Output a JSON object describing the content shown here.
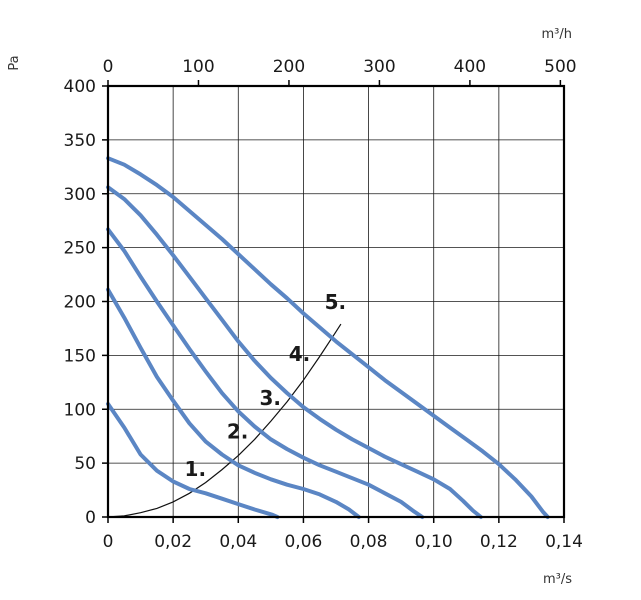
{
  "chart_data": {
    "type": "line",
    "x_unit_bottom": "m³/s",
    "x_unit_top": "m³/h",
    "y_unit": "Pa",
    "xlim": [
      0,
      0.14
    ],
    "ylim": [
      0,
      400
    ],
    "x_ticks": [
      {
        "value": 0,
        "label": "0"
      },
      {
        "value": 0.02,
        "label": "0,02"
      },
      {
        "value": 0.04,
        "label": "0,04"
      },
      {
        "value": 0.06,
        "label": "0,06"
      },
      {
        "value": 0.08,
        "label": "0,08"
      },
      {
        "value": 0.1,
        "label": "0,10"
      },
      {
        "value": 0.12,
        "label": "0,12"
      },
      {
        "value": 0.14,
        "label": "0,14"
      }
    ],
    "x_top_ticks": [
      {
        "value": 0,
        "label": "0"
      },
      {
        "value": 100,
        "label": "100"
      },
      {
        "value": 200,
        "label": "200"
      },
      {
        "value": 300,
        "label": "300"
      },
      {
        "value": 400,
        "label": "400"
      },
      {
        "value": 500,
        "label": "500"
      }
    ],
    "x_top_per_bottom_unit": 3600,
    "y_ticks": [
      {
        "value": 0,
        "label": "0"
      },
      {
        "value": 50,
        "label": "50"
      },
      {
        "value": 100,
        "label": "100"
      },
      {
        "value": 150,
        "label": "150"
      },
      {
        "value": 200,
        "label": "200"
      },
      {
        "value": 250,
        "label": "250"
      },
      {
        "value": 300,
        "label": "300"
      },
      {
        "value": 350,
        "label": "350"
      },
      {
        "value": 400,
        "label": "400"
      }
    ],
    "series_color": "#5b86c4",
    "system_curve_color": "#111111",
    "grid": true,
    "series": [
      {
        "label": "1.",
        "label_at": [
          0.0235,
          38
        ],
        "points": [
          [
            0,
            105
          ],
          [
            0.005,
            83
          ],
          [
            0.01,
            58
          ],
          [
            0.015,
            43
          ],
          [
            0.02,
            33
          ],
          [
            0.025,
            26
          ],
          [
            0.03,
            22
          ],
          [
            0.035,
            17
          ],
          [
            0.04,
            12
          ],
          [
            0.045,
            7
          ],
          [
            0.0505,
            2
          ],
          [
            0.052,
            0
          ]
        ]
      },
      {
        "label": "2.",
        "label_at": [
          0.0365,
          73
        ],
        "points": [
          [
            0,
            211
          ],
          [
            0.005,
            185
          ],
          [
            0.01,
            157
          ],
          [
            0.015,
            130
          ],
          [
            0.02,
            108
          ],
          [
            0.025,
            87
          ],
          [
            0.03,
            70
          ],
          [
            0.035,
            58
          ],
          [
            0.04,
            48
          ],
          [
            0.045,
            41
          ],
          [
            0.05,
            35
          ],
          [
            0.055,
            30
          ],
          [
            0.06,
            26
          ],
          [
            0.065,
            21
          ],
          [
            0.07,
            14
          ],
          [
            0.074,
            7
          ],
          [
            0.077,
            0
          ]
        ]
      },
      {
        "label": "3.",
        "label_at": [
          0.0465,
          104
        ],
        "points": [
          [
            0,
            267
          ],
          [
            0.005,
            247
          ],
          [
            0.01,
            223
          ],
          [
            0.015,
            200
          ],
          [
            0.02,
            178
          ],
          [
            0.025,
            156
          ],
          [
            0.03,
            135
          ],
          [
            0.035,
            115
          ],
          [
            0.04,
            98
          ],
          [
            0.045,
            84
          ],
          [
            0.05,
            72
          ],
          [
            0.055,
            63
          ],
          [
            0.06,
            55
          ],
          [
            0.065,
            48
          ],
          [
            0.07,
            42
          ],
          [
            0.075,
            36
          ],
          [
            0.08,
            30
          ],
          [
            0.085,
            22
          ],
          [
            0.09,
            14
          ],
          [
            0.094,
            5
          ],
          [
            0.0965,
            0
          ]
        ]
      },
      {
        "label": "4.",
        "label_at": [
          0.0555,
          145
        ],
        "points": [
          [
            0,
            306
          ],
          [
            0.005,
            295
          ],
          [
            0.01,
            280
          ],
          [
            0.015,
            262
          ],
          [
            0.02,
            243
          ],
          [
            0.025,
            223
          ],
          [
            0.03,
            203
          ],
          [
            0.035,
            183
          ],
          [
            0.04,
            163
          ],
          [
            0.045,
            145
          ],
          [
            0.05,
            129
          ],
          [
            0.055,
            115
          ],
          [
            0.06,
            102
          ],
          [
            0.065,
            91
          ],
          [
            0.07,
            81
          ],
          [
            0.075,
            72
          ],
          [
            0.08,
            64
          ],
          [
            0.085,
            56
          ],
          [
            0.09,
            49
          ],
          [
            0.095,
            42
          ],
          [
            0.1,
            35
          ],
          [
            0.105,
            26
          ],
          [
            0.109,
            15
          ],
          [
            0.112,
            6
          ],
          [
            0.1145,
            0
          ]
        ]
      },
      {
        "label": "5.",
        "label_at": [
          0.0665,
          193
        ],
        "points": [
          [
            0,
            333
          ],
          [
            0.005,
            327
          ],
          [
            0.01,
            318
          ],
          [
            0.015,
            308
          ],
          [
            0.02,
            297
          ],
          [
            0.025,
            284
          ],
          [
            0.03,
            271
          ],
          [
            0.035,
            258
          ],
          [
            0.04,
            244
          ],
          [
            0.045,
            230
          ],
          [
            0.05,
            216
          ],
          [
            0.055,
            203
          ],
          [
            0.06,
            189
          ],
          [
            0.065,
            176
          ],
          [
            0.07,
            163
          ],
          [
            0.075,
            151
          ],
          [
            0.08,
            139
          ],
          [
            0.085,
            127
          ],
          [
            0.09,
            116
          ],
          [
            0.095,
            105
          ],
          [
            0.1,
            94
          ],
          [
            0.105,
            83
          ],
          [
            0.11,
            72
          ],
          [
            0.115,
            61
          ],
          [
            0.12,
            49
          ],
          [
            0.125,
            35
          ],
          [
            0.13,
            19
          ],
          [
            0.1335,
            5
          ],
          [
            0.135,
            0
          ]
        ]
      }
    ],
    "system_curve_points": [
      [
        0,
        0
      ],
      [
        0.005,
        1
      ],
      [
        0.01,
        4
      ],
      [
        0.015,
        8
      ],
      [
        0.02,
        14
      ],
      [
        0.025,
        22
      ],
      [
        0.03,
        32
      ],
      [
        0.035,
        44
      ],
      [
        0.04,
        57
      ],
      [
        0.045,
        72
      ],
      [
        0.05,
        89
      ],
      [
        0.055,
        107
      ],
      [
        0.06,
        127
      ],
      [
        0.065,
        149
      ],
      [
        0.07,
        172
      ],
      [
        0.0715,
        179
      ]
    ]
  }
}
